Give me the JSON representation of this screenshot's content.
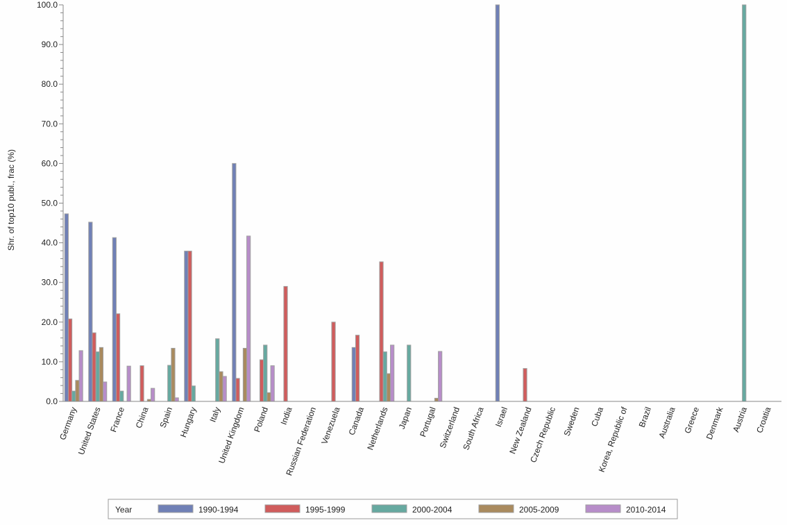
{
  "chart_data": {
    "type": "bar",
    "ylabel": "Shr. of top10 publ., frac (%)",
    "xlabel": "",
    "ylim": [
      0,
      100
    ],
    "yticks": [
      "0.0",
      "10.0",
      "20.0",
      "30.0",
      "40.0",
      "50.0",
      "60.0",
      "70.0",
      "80.0",
      "90.0",
      "100.0"
    ],
    "grid": false,
    "legend": {
      "title": "Year",
      "placement": "bottom"
    },
    "categories": [
      "Germany",
      "United States",
      "France",
      "China",
      "Spain",
      "Hungary",
      "Italy",
      "United Kingdom",
      "Poland",
      "India",
      "Russian Federation",
      "Venezuela",
      "Canada",
      "Netherlands",
      "Japan",
      "Portugal",
      "Switzerland",
      "South Africa",
      "Israel",
      "New Zealand",
      "Czech Republic",
      "Sweden",
      "Cuba",
      "Korea, Republic of",
      "Brazil",
      "Australia",
      "Greece",
      "Denmark",
      "Austria",
      "Croatia"
    ],
    "series": [
      {
        "name": "1990-1994",
        "color": "#7080b6",
        "values": [
          47.3,
          45.2,
          41.3,
          0,
          0,
          37.9,
          0,
          60.0,
          0,
          0,
          0,
          0,
          13.6,
          0,
          0,
          0,
          0,
          0,
          100.0,
          0,
          0,
          0,
          0,
          0,
          0,
          0,
          0,
          0,
          0,
          0
        ]
      },
      {
        "name": "1995-1999",
        "color": "#d05c5c",
        "values": [
          20.8,
          17.3,
          22.1,
          9.0,
          0,
          37.9,
          0,
          5.8,
          10.5,
          29.0,
          0,
          20.0,
          16.7,
          35.2,
          0,
          0,
          0,
          0,
          0,
          8.3,
          0,
          0,
          0,
          0,
          0,
          0,
          0,
          0,
          0,
          0
        ]
      },
      {
        "name": "2000-2004",
        "color": "#66a9a0",
        "values": [
          2.6,
          12.5,
          2.6,
          0,
          9.1,
          3.9,
          15.8,
          0,
          14.2,
          0,
          0,
          0,
          0,
          12.5,
          14.2,
          0,
          0,
          0,
          0,
          0,
          0,
          0,
          0,
          0,
          0,
          0,
          0,
          0,
          100.0,
          0
        ]
      },
      {
        "name": "2005-2009",
        "color": "#a98a5e",
        "values": [
          5.3,
          13.6,
          0,
          0.5,
          13.4,
          0,
          7.5,
          13.4,
          2.2,
          0,
          0,
          0,
          0,
          7.0,
          0,
          0.8,
          0,
          0,
          0,
          0,
          0,
          0,
          0,
          0,
          0,
          0,
          0,
          0,
          0,
          0
        ]
      },
      {
        "name": "2010-2014",
        "color": "#b78dc9",
        "values": [
          12.8,
          4.9,
          8.9,
          3.3,
          0.9,
          0,
          6.3,
          41.7,
          9.0,
          0,
          0,
          0,
          0,
          14.2,
          0,
          12.6,
          0,
          0,
          0,
          0,
          0,
          0,
          0,
          0,
          0,
          0,
          0,
          0,
          0,
          0
        ]
      }
    ]
  }
}
